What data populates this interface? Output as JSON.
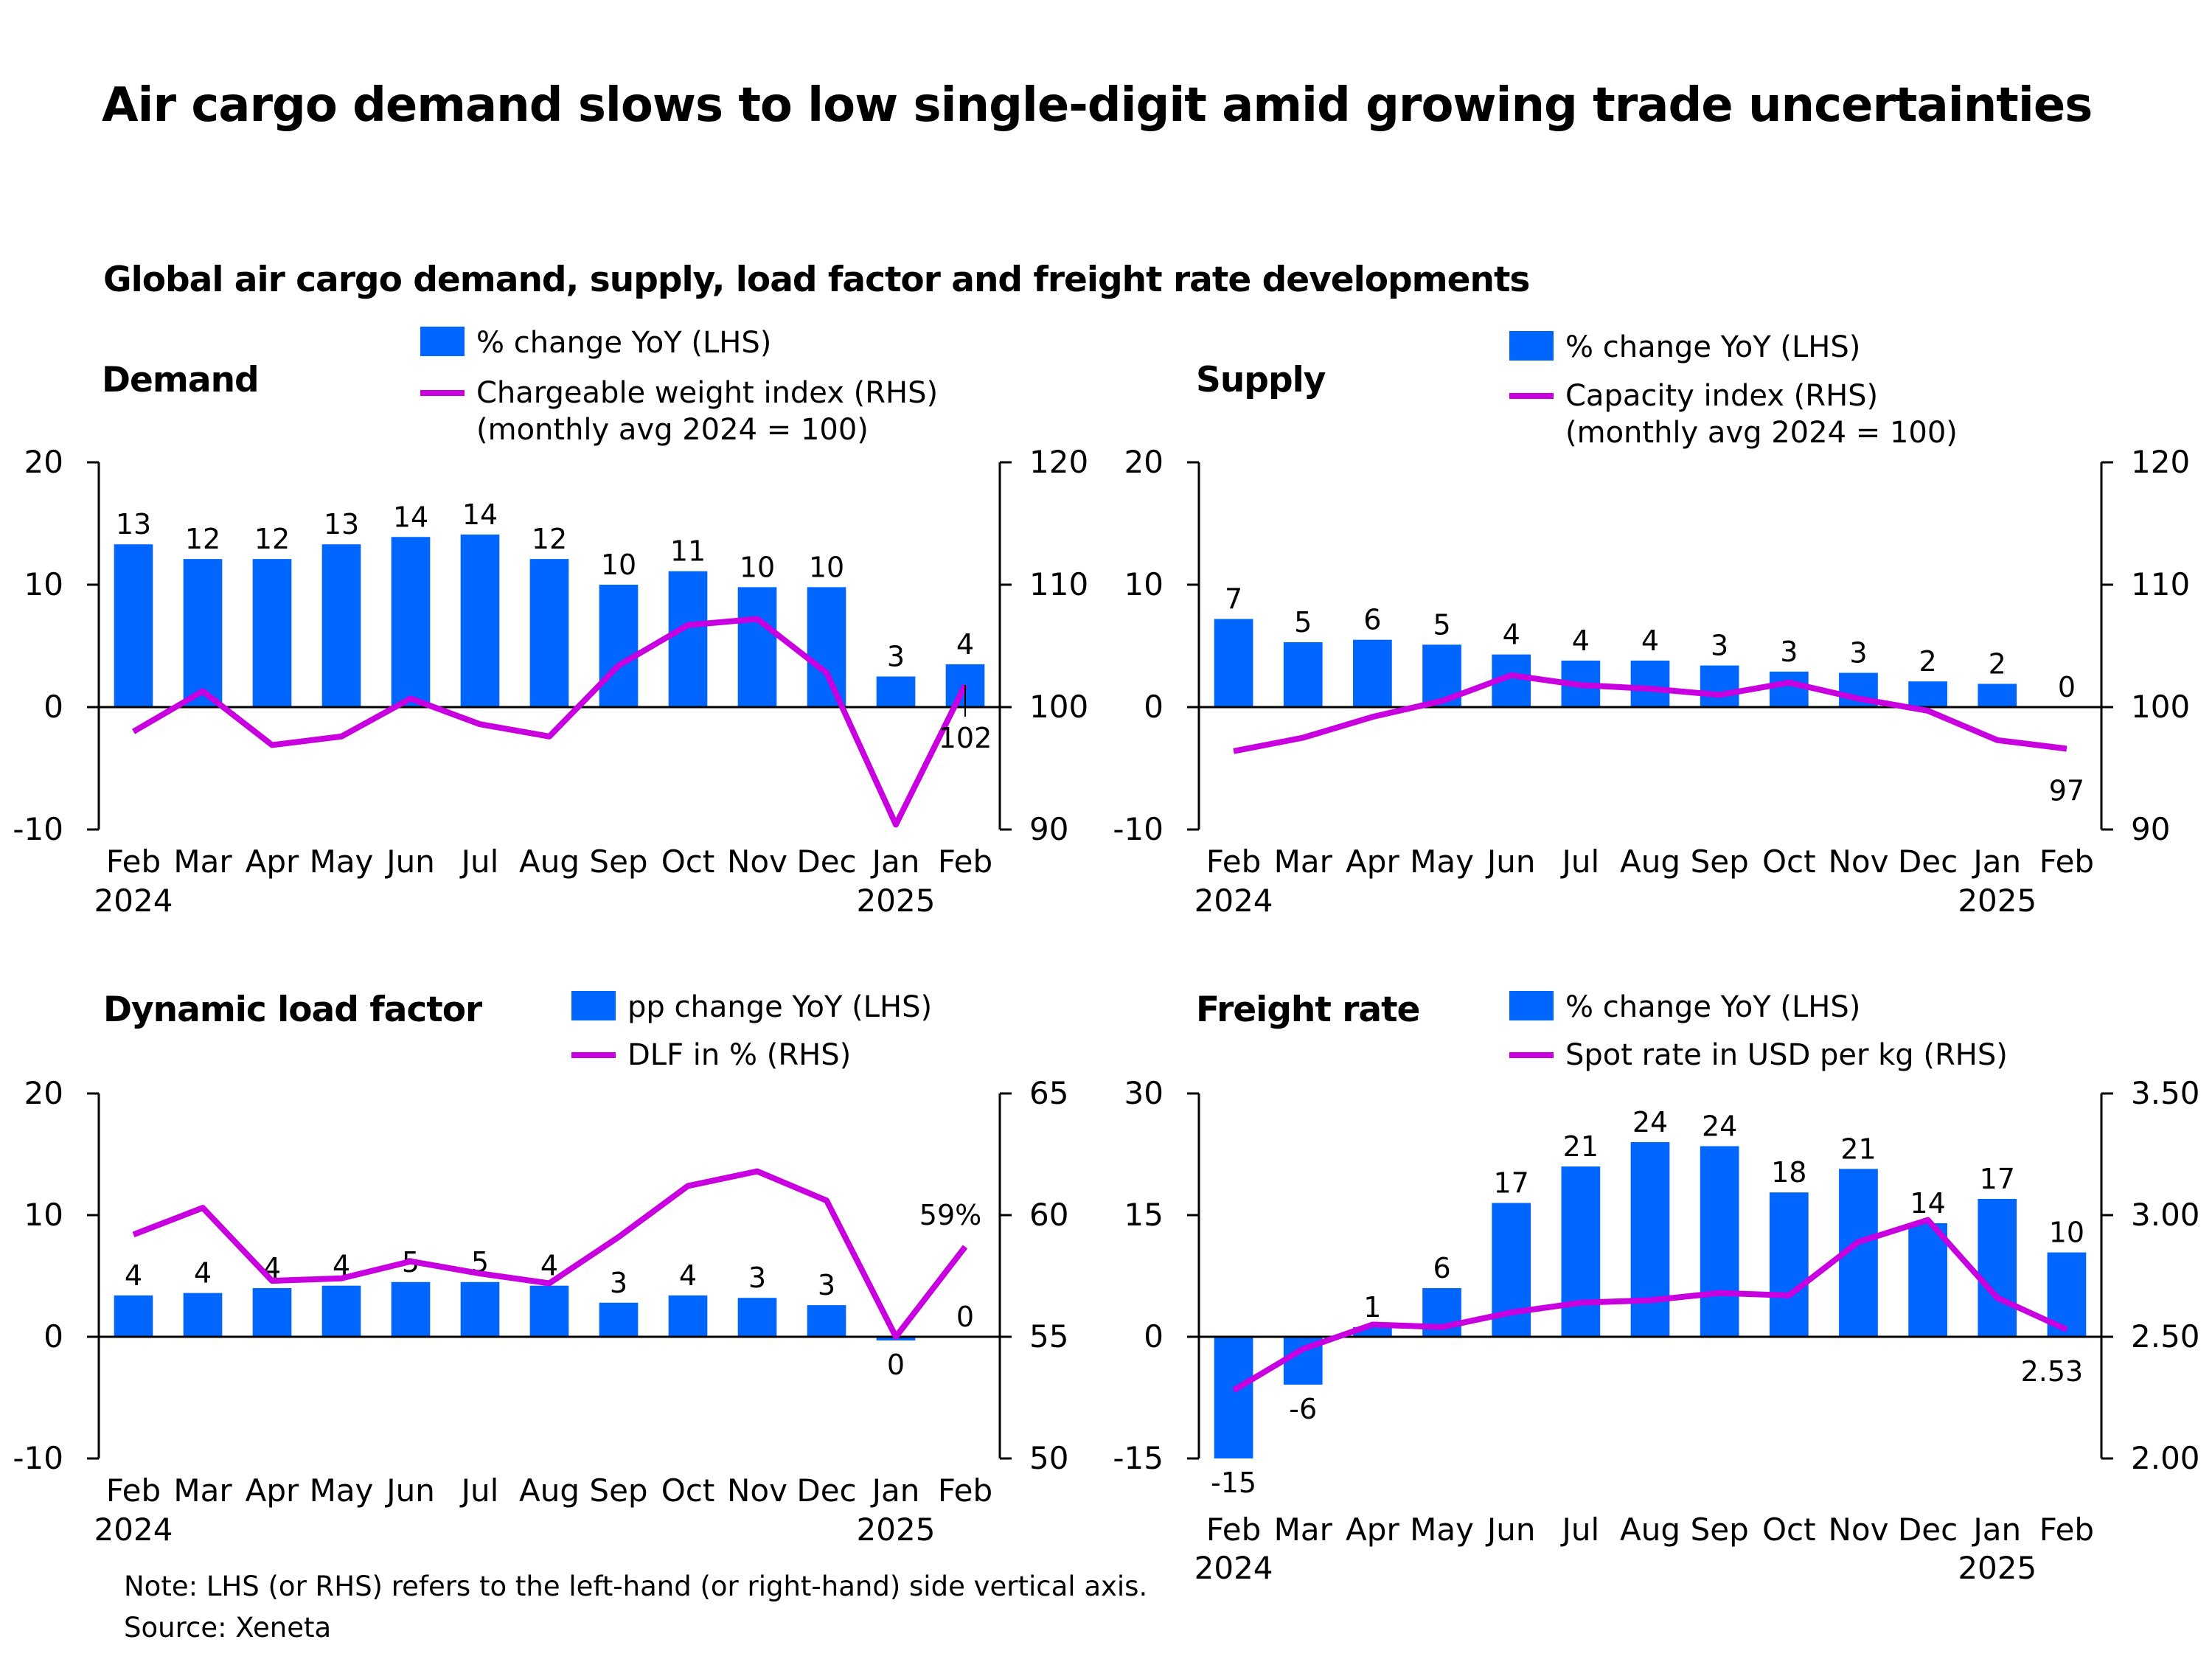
{
  "title": "Air cargo demand slows to low single-digit amid growing trade uncertainties",
  "subtitle": "Global air cargo demand, supply, load factor and freight rate developments",
  "note": "Note: LHS (or RHS) refers to the left-hand (or right-hand) side vertical axis.",
  "source": "Source: Xeneta",
  "colors": {
    "bar": "#0066FF",
    "line": "#C800E0"
  },
  "chart_data": [
    {
      "type": "bar+line",
      "title": "Demand",
      "legend": {
        "bar": "% change YoY (LHS)",
        "line": "Chargeable weight index (RHS)",
        "line_note": "(monthly avg 2024 = 100)"
      },
      "categories": [
        "Feb",
        "Mar",
        "Apr",
        "May",
        "Jun",
        "Jul",
        "Aug",
        "Sep",
        "Oct",
        "Nov",
        "Dec",
        "Jan",
        "Feb"
      ],
      "year_labels": [
        {
          "index": 0,
          "label": "2024"
        },
        {
          "index": 11,
          "label": "2025"
        }
      ],
      "ylim_left": [
        -10,
        20
      ],
      "yticks_left": [
        -10,
        0,
        10,
        20
      ],
      "ylim_right": [
        90,
        120
      ],
      "yticks_right": [
        90,
        100,
        110,
        120
      ],
      "bar_values": [
        13.3,
        12.1,
        12.1,
        13.3,
        13.9,
        14.1,
        12.1,
        10.0,
        11.1,
        9.8,
        9.8,
        2.5,
        3.5
      ],
      "bar_labels": [
        "13",
        "12",
        "12",
        "13",
        "14",
        "14",
        "12",
        "10",
        "11",
        "10",
        "10",
        "3",
        "4"
      ],
      "line_values": [
        98.0,
        101.3,
        96.9,
        97.6,
        100.7,
        98.6,
        97.6,
        103.4,
        106.7,
        107.2,
        102.8,
        90.4,
        101.8
      ],
      "line_end_label": "102"
    },
    {
      "type": "bar+line",
      "title": "Supply",
      "legend": {
        "bar": "% change YoY (LHS)",
        "line": "Capacity index (RHS)",
        "line_note": "(monthly avg 2024 = 100)"
      },
      "categories": [
        "Feb",
        "Mar",
        "Apr",
        "May",
        "Jun",
        "Jul",
        "Aug",
        "Sep",
        "Oct",
        "Nov",
        "Dec",
        "Jan",
        "Feb"
      ],
      "year_labels": [
        {
          "index": 0,
          "label": "2024"
        },
        {
          "index": 11,
          "label": "2025"
        }
      ],
      "ylim_left": [
        -10,
        20
      ],
      "yticks_left": [
        -10,
        0,
        10,
        20
      ],
      "ylim_right": [
        90,
        120
      ],
      "yticks_right": [
        90,
        100,
        110,
        120
      ],
      "bar_values": [
        7.2,
        5.3,
        5.5,
        5.1,
        4.3,
        3.8,
        3.8,
        3.4,
        2.9,
        2.8,
        2.1,
        1.9,
        0.0
      ],
      "bar_labels": [
        "7",
        "5",
        "6",
        "5",
        "4",
        "4",
        "4",
        "3",
        "3",
        "3",
        "2",
        "2",
        "0"
      ],
      "line_values": [
        96.4,
        97.5,
        99.2,
        100.5,
        102.6,
        101.8,
        101.5,
        101.0,
        102.0,
        100.7,
        99.7,
        97.3,
        96.6
      ],
      "line_end_label": "97"
    },
    {
      "type": "bar+line",
      "title": "Dynamic load factor",
      "legend": {
        "bar": "pp change YoY (LHS)",
        "line": "DLF in % (RHS)"
      },
      "categories": [
        "Feb",
        "Mar",
        "Apr",
        "May",
        "Jun",
        "Jul",
        "Aug",
        "Sep",
        "Oct",
        "Nov",
        "Dec",
        "Jan",
        "Feb"
      ],
      "year_labels": [
        {
          "index": 0,
          "label": "2024"
        },
        {
          "index": 11,
          "label": "2025"
        }
      ],
      "ylim_left": [
        -10,
        20
      ],
      "yticks_left": [
        -10,
        0,
        10,
        20
      ],
      "ylim_right": [
        50,
        65
      ],
      "yticks_right": [
        50,
        55,
        60,
        65
      ],
      "bar_values": [
        3.4,
        3.6,
        4.0,
        4.2,
        4.5,
        4.5,
        4.2,
        2.8,
        3.4,
        3.2,
        2.6,
        -0.3,
        0.0
      ],
      "bar_labels": [
        "4",
        "4",
        "4",
        "4",
        "5",
        "5",
        "4",
        "3",
        "4",
        "3",
        "3",
        "0",
        "0"
      ],
      "line_values": [
        59.2,
        60.3,
        57.3,
        57.4,
        58.1,
        57.6,
        57.2,
        59.1,
        61.2,
        61.8,
        60.6,
        55.0,
        58.7
      ],
      "line_end_label": "59%"
    },
    {
      "type": "bar+line",
      "title": "Freight rate",
      "legend": {
        "bar": "% change YoY (LHS)",
        "line": "Spot rate in USD per kg (RHS)"
      },
      "categories": [
        "Feb",
        "Mar",
        "Apr",
        "May",
        "Jun",
        "Jul",
        "Aug",
        "Sep",
        "Oct",
        "Nov",
        "Dec",
        "Jan",
        "Feb"
      ],
      "year_labels": [
        {
          "index": 0,
          "label": "2024"
        },
        {
          "index": 11,
          "label": "2025"
        }
      ],
      "ylim_left": [
        -15,
        30
      ],
      "yticks_left": [
        -15,
        0,
        15,
        30
      ],
      "ylim_right": [
        2.0,
        3.5
      ],
      "yticks_right": [
        "2.00",
        "2.50",
        "3.00",
        "3.50"
      ],
      "bar_values": [
        -15.0,
        -5.9,
        1.2,
        6.0,
        16.5,
        21.0,
        24.0,
        23.5,
        17.8,
        20.7,
        14.0,
        17.0,
        10.4
      ],
      "bar_labels": [
        "-15",
        "-6",
        "1",
        "6",
        "17",
        "21",
        "24",
        "24",
        "18",
        "21",
        "14",
        "17",
        "10"
      ],
      "line_values": [
        2.28,
        2.45,
        2.55,
        2.54,
        2.6,
        2.64,
        2.65,
        2.68,
        2.67,
        2.89,
        2.98,
        2.66,
        2.53
      ],
      "line_end_label": "2.53"
    }
  ]
}
